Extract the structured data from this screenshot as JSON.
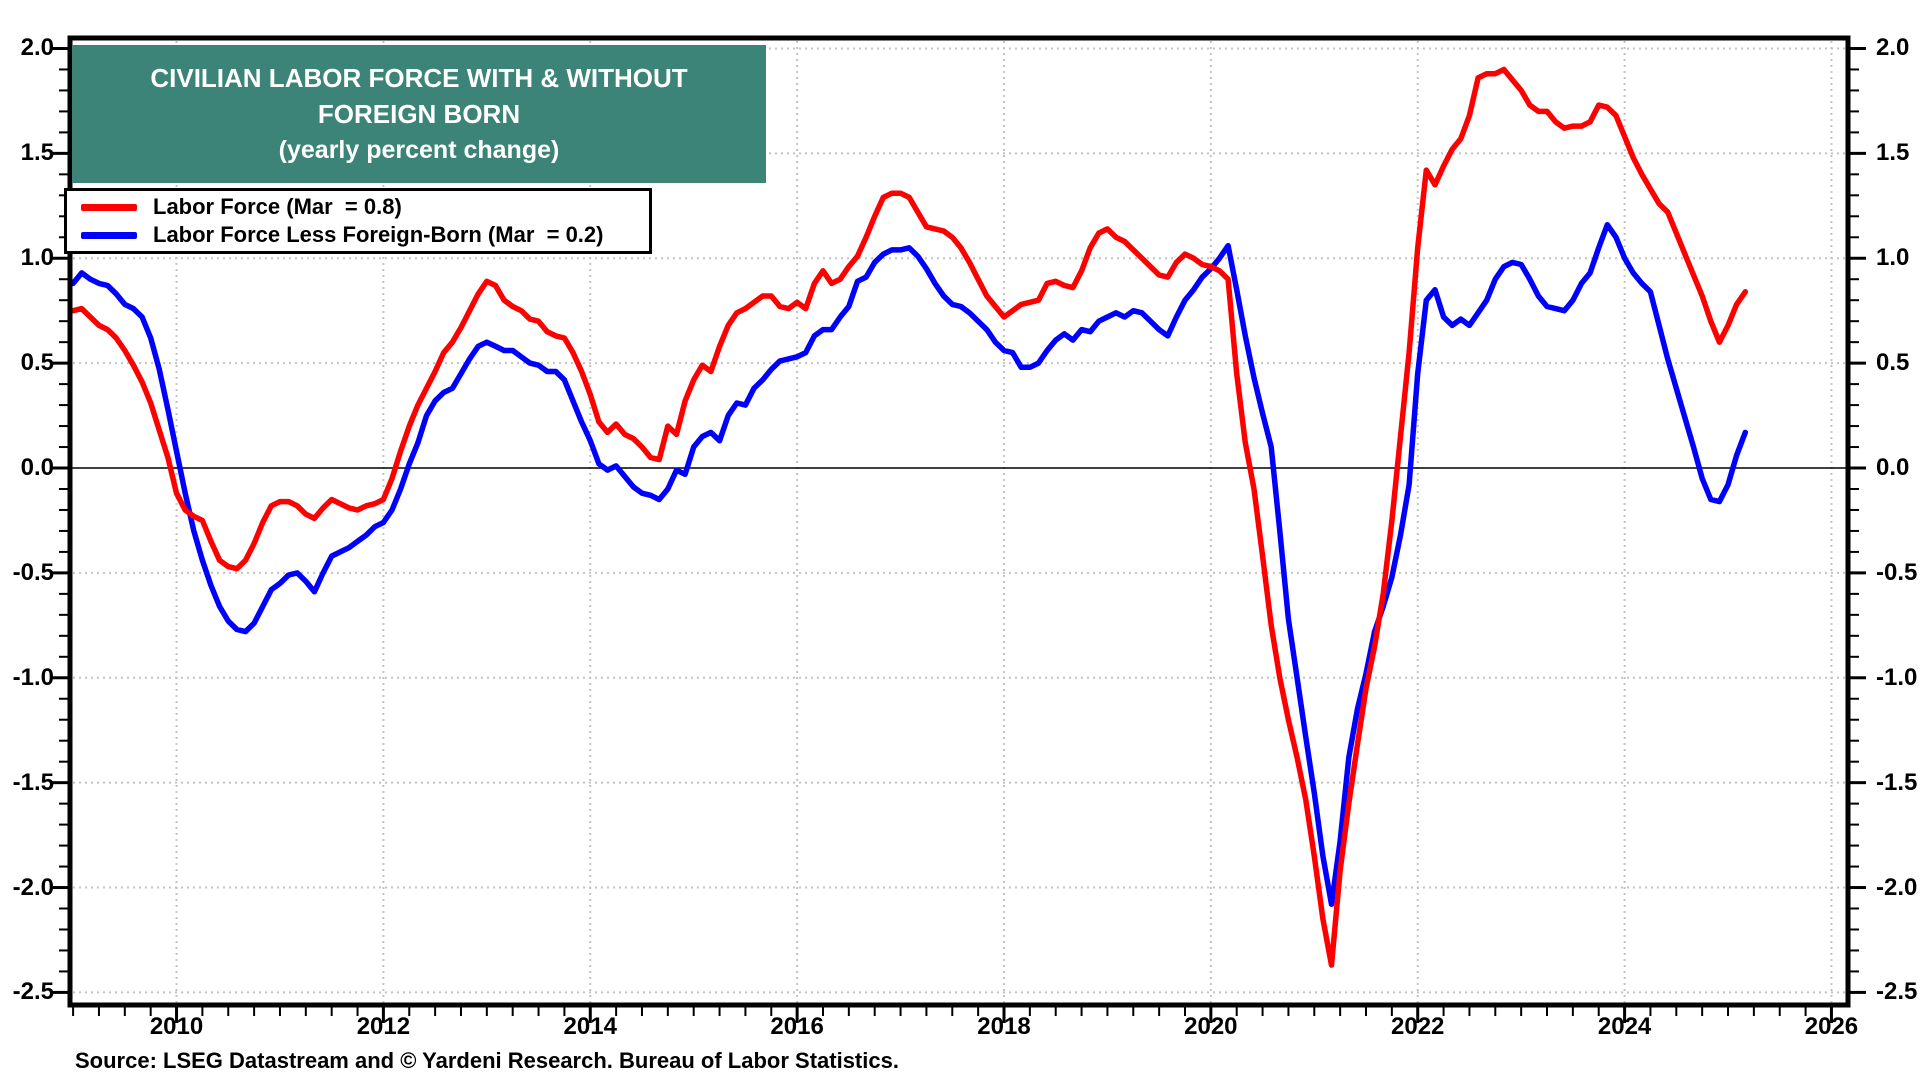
{
  "title_box": {
    "line1": "CIVILIAN LABOR FORCE WITH & WITHOUT",
    "line2": "FOREIGN BORN",
    "line3": "(yearly percent change)"
  },
  "legend": {
    "items": [
      {
        "label": "Labor Force (Mar  = 0.8)",
        "color": "#ff0000"
      },
      {
        "label": "Labor Force Less Foreign-Born (Mar  = 0.2)",
        "color": "#0000ff"
      }
    ]
  },
  "source_note": "Source: LSEG Datastream and © Yardeni Research. Bureau of Labor Statistics.",
  "colors": {
    "title_bg": "#3b8477",
    "title_text": "#ffffff",
    "series_red": "#ff0000",
    "series_blue": "#0000ff",
    "grid": "#c3c3c3",
    "axis": "#000000",
    "background": "#ffffff"
  },
  "chart_data": {
    "type": "line",
    "title": "CIVILIAN LABOR FORCE WITH & WITHOUT FOREIGN BORN (yearly percent change)",
    "xlabel": "",
    "ylabel": "yearly percent change",
    "x_start_year": 2009,
    "x_step_months": 1,
    "x_end_label": "Mar 2025",
    "xlim": [
      2008.97,
      2026.16
    ],
    "ylim": [
      -2.56,
      2.05
    ],
    "x_tick_years": [
      2010,
      2012,
      2014,
      2016,
      2018,
      2020,
      2022,
      2024,
      2026
    ],
    "x_minor_tick_step_years": 0.25,
    "x_minor_tick_range": [
      2009,
      2026
    ],
    "y_ticks": [
      2.0,
      1.5,
      1.0,
      0.5,
      0.0,
      -0.5,
      -1.0,
      -1.5,
      -2.0,
      -2.5
    ],
    "y_minor_tick_step": 0.1,
    "grid": true,
    "zero_line": true,
    "legend_position": "top-left",
    "dual_y_axis_labels": true,
    "series": [
      {
        "name": "Labor Force",
        "legend_value_label": "Mar = 0.8",
        "color": "#ff0000",
        "values": [
          0.75,
          0.76,
          0.72,
          0.68,
          0.66,
          0.62,
          0.56,
          0.49,
          0.41,
          0.31,
          0.18,
          0.05,
          -0.12,
          -0.2,
          -0.23,
          -0.25,
          -0.35,
          -0.44,
          -0.47,
          -0.48,
          -0.44,
          -0.36,
          -0.26,
          -0.18,
          -0.16,
          -0.16,
          -0.18,
          -0.22,
          -0.24,
          -0.19,
          -0.15,
          -0.17,
          -0.19,
          -0.2,
          -0.18,
          -0.17,
          -0.15,
          -0.05,
          0.08,
          0.2,
          0.3,
          0.38,
          0.46,
          0.55,
          0.6,
          0.67,
          0.75,
          0.83,
          0.89,
          0.87,
          0.8,
          0.77,
          0.75,
          0.71,
          0.7,
          0.65,
          0.63,
          0.62,
          0.55,
          0.46,
          0.35,
          0.22,
          0.17,
          0.21,
          0.16,
          0.14,
          0.1,
          0.05,
          0.04,
          0.2,
          0.16,
          0.32,
          0.42,
          0.49,
          0.46,
          0.58,
          0.68,
          0.74,
          0.76,
          0.79,
          0.82,
          0.82,
          0.77,
          0.76,
          0.79,
          0.76,
          0.88,
          0.94,
          0.88,
          0.9,
          0.96,
          1.01,
          1.1,
          1.2,
          1.29,
          1.31,
          1.31,
          1.29,
          1.22,
          1.15,
          1.14,
          1.13,
          1.1,
          1.05,
          0.98,
          0.9,
          0.82,
          0.77,
          0.72,
          0.75,
          0.78,
          0.79,
          0.8,
          0.88,
          0.89,
          0.87,
          0.86,
          0.94,
          1.05,
          1.12,
          1.14,
          1.1,
          1.08,
          1.04,
          1.0,
          0.96,
          0.92,
          0.91,
          0.98,
          1.02,
          1.0,
          0.97,
          0.96,
          0.94,
          0.9,
          0.45,
          0.12,
          -0.1,
          -0.42,
          -0.75,
          -1.0,
          -1.2,
          -1.38,
          -1.58,
          -1.85,
          -2.15,
          -2.37,
          -1.92,
          -1.6,
          -1.32,
          -1.05,
          -0.85,
          -0.6,
          -0.25,
          0.15,
          0.55,
          1.05,
          1.42,
          1.35,
          1.44,
          1.52,
          1.57,
          1.68,
          1.86,
          1.88,
          1.88,
          1.9,
          1.85,
          1.8,
          1.73,
          1.7,
          1.7,
          1.65,
          1.62,
          1.63,
          1.63,
          1.65,
          1.73,
          1.72,
          1.68,
          1.58,
          1.48,
          1.4,
          1.33,
          1.26,
          1.22,
          1.12,
          1.02,
          0.92,
          0.82,
          0.7,
          0.6,
          0.68,
          0.78,
          0.84
        ]
      },
      {
        "name": "Labor Force Less Foreign-Born",
        "legend_value_label": "Mar = 0.2",
        "color": "#0000ff",
        "values": [
          0.88,
          0.93,
          0.9,
          0.88,
          0.87,
          0.83,
          0.78,
          0.76,
          0.72,
          0.62,
          0.47,
          0.28,
          0.08,
          -0.12,
          -0.3,
          -0.44,
          -0.56,
          -0.66,
          -0.73,
          -0.77,
          -0.78,
          -0.74,
          -0.66,
          -0.58,
          -0.55,
          -0.51,
          -0.5,
          -0.54,
          -0.59,
          -0.5,
          -0.42,
          -0.4,
          -0.38,
          -0.35,
          -0.32,
          -0.28,
          -0.26,
          -0.2,
          -0.1,
          0.02,
          0.12,
          0.25,
          0.32,
          0.36,
          0.38,
          0.45,
          0.52,
          0.58,
          0.6,
          0.58,
          0.56,
          0.56,
          0.53,
          0.5,
          0.49,
          0.46,
          0.46,
          0.42,
          0.32,
          0.22,
          0.13,
          0.02,
          -0.01,
          0.01,
          -0.04,
          -0.09,
          -0.12,
          -0.13,
          -0.15,
          -0.1,
          -0.01,
          -0.03,
          0.1,
          0.15,
          0.17,
          0.13,
          0.25,
          0.31,
          0.3,
          0.38,
          0.42,
          0.47,
          0.51,
          0.52,
          0.53,
          0.55,
          0.63,
          0.66,
          0.66,
          0.72,
          0.77,
          0.89,
          0.91,
          0.98,
          1.02,
          1.04,
          1.04,
          1.05,
          1.01,
          0.95,
          0.88,
          0.82,
          0.78,
          0.77,
          0.74,
          0.7,
          0.66,
          0.6,
          0.56,
          0.55,
          0.48,
          0.48,
          0.5,
          0.56,
          0.61,
          0.64,
          0.61,
          0.66,
          0.65,
          0.7,
          0.72,
          0.74,
          0.72,
          0.75,
          0.74,
          0.7,
          0.66,
          0.63,
          0.72,
          0.8,
          0.85,
          0.91,
          0.95,
          1.0,
          1.06,
          0.85,
          0.63,
          0.43,
          0.26,
          0.1,
          -0.3,
          -0.72,
          -1.0,
          -1.28,
          -1.55,
          -1.85,
          -2.08,
          -1.78,
          -1.38,
          -1.15,
          -0.98,
          -0.78,
          -0.66,
          -0.52,
          -0.32,
          -0.08,
          0.45,
          0.8,
          0.85,
          0.72,
          0.68,
          0.71,
          0.68,
          0.74,
          0.8,
          0.9,
          0.96,
          0.98,
          0.97,
          0.9,
          0.82,
          0.77,
          0.76,
          0.75,
          0.8,
          0.88,
          0.93,
          1.05,
          1.16,
          1.1,
          1.0,
          0.93,
          0.88,
          0.84,
          0.68,
          0.52,
          0.38,
          0.24,
          0.1,
          -0.05,
          -0.15,
          -0.16,
          -0.08,
          0.06,
          0.17
        ]
      }
    ]
  }
}
